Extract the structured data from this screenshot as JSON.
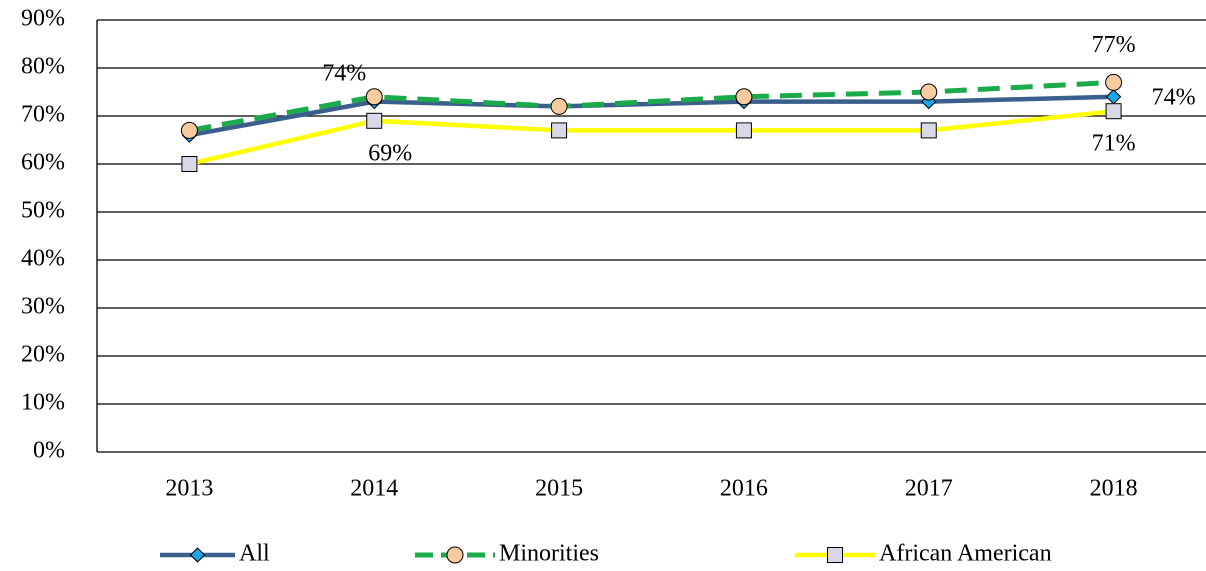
{
  "chart_data": {
    "type": "line",
    "categories": [
      "2013",
      "2014",
      "2015",
      "2016",
      "2017",
      "2018"
    ],
    "series": [
      {
        "name": "All",
        "color": "#3b5f8c",
        "marker": "diamond",
        "marker_color": "#1fa3e6",
        "dashed": false,
        "values": [
          66,
          73,
          72,
          73,
          73,
          74
        ],
        "value_labels": [
          null,
          null,
          null,
          null,
          null,
          "74%"
        ]
      },
      {
        "name": "Minorities",
        "color": "#1aaa4a",
        "marker": "circle",
        "marker_color": "#f8caa0",
        "dashed": true,
        "values": [
          67,
          74,
          72,
          74,
          75,
          77
        ],
        "value_labels": [
          null,
          "74%",
          null,
          null,
          null,
          "77%"
        ]
      },
      {
        "name": "African American",
        "color": "#ffff00",
        "marker": "square",
        "marker_color": "#d9d8e8",
        "dashed": false,
        "values": [
          60,
          69,
          67,
          67,
          67,
          71
        ],
        "value_labels": [
          null,
          "69%",
          null,
          null,
          null,
          "71%"
        ]
      }
    ],
    "ylim": [
      0,
      90
    ],
    "yticks": [
      {
        "value": 0,
        "label": "0%"
      },
      {
        "value": 10,
        "label": "10%"
      },
      {
        "value": 20,
        "label": "20%"
      },
      {
        "value": 30,
        "label": "30%"
      },
      {
        "value": 40,
        "label": "40%"
      },
      {
        "value": 50,
        "label": "50%"
      },
      {
        "value": 60,
        "label": "60%"
      },
      {
        "value": 70,
        "label": "70%"
      },
      {
        "value": 80,
        "label": "80%"
      },
      {
        "value": 90,
        "label": "90%"
      }
    ],
    "grid": true,
    "legend": "bottom"
  }
}
